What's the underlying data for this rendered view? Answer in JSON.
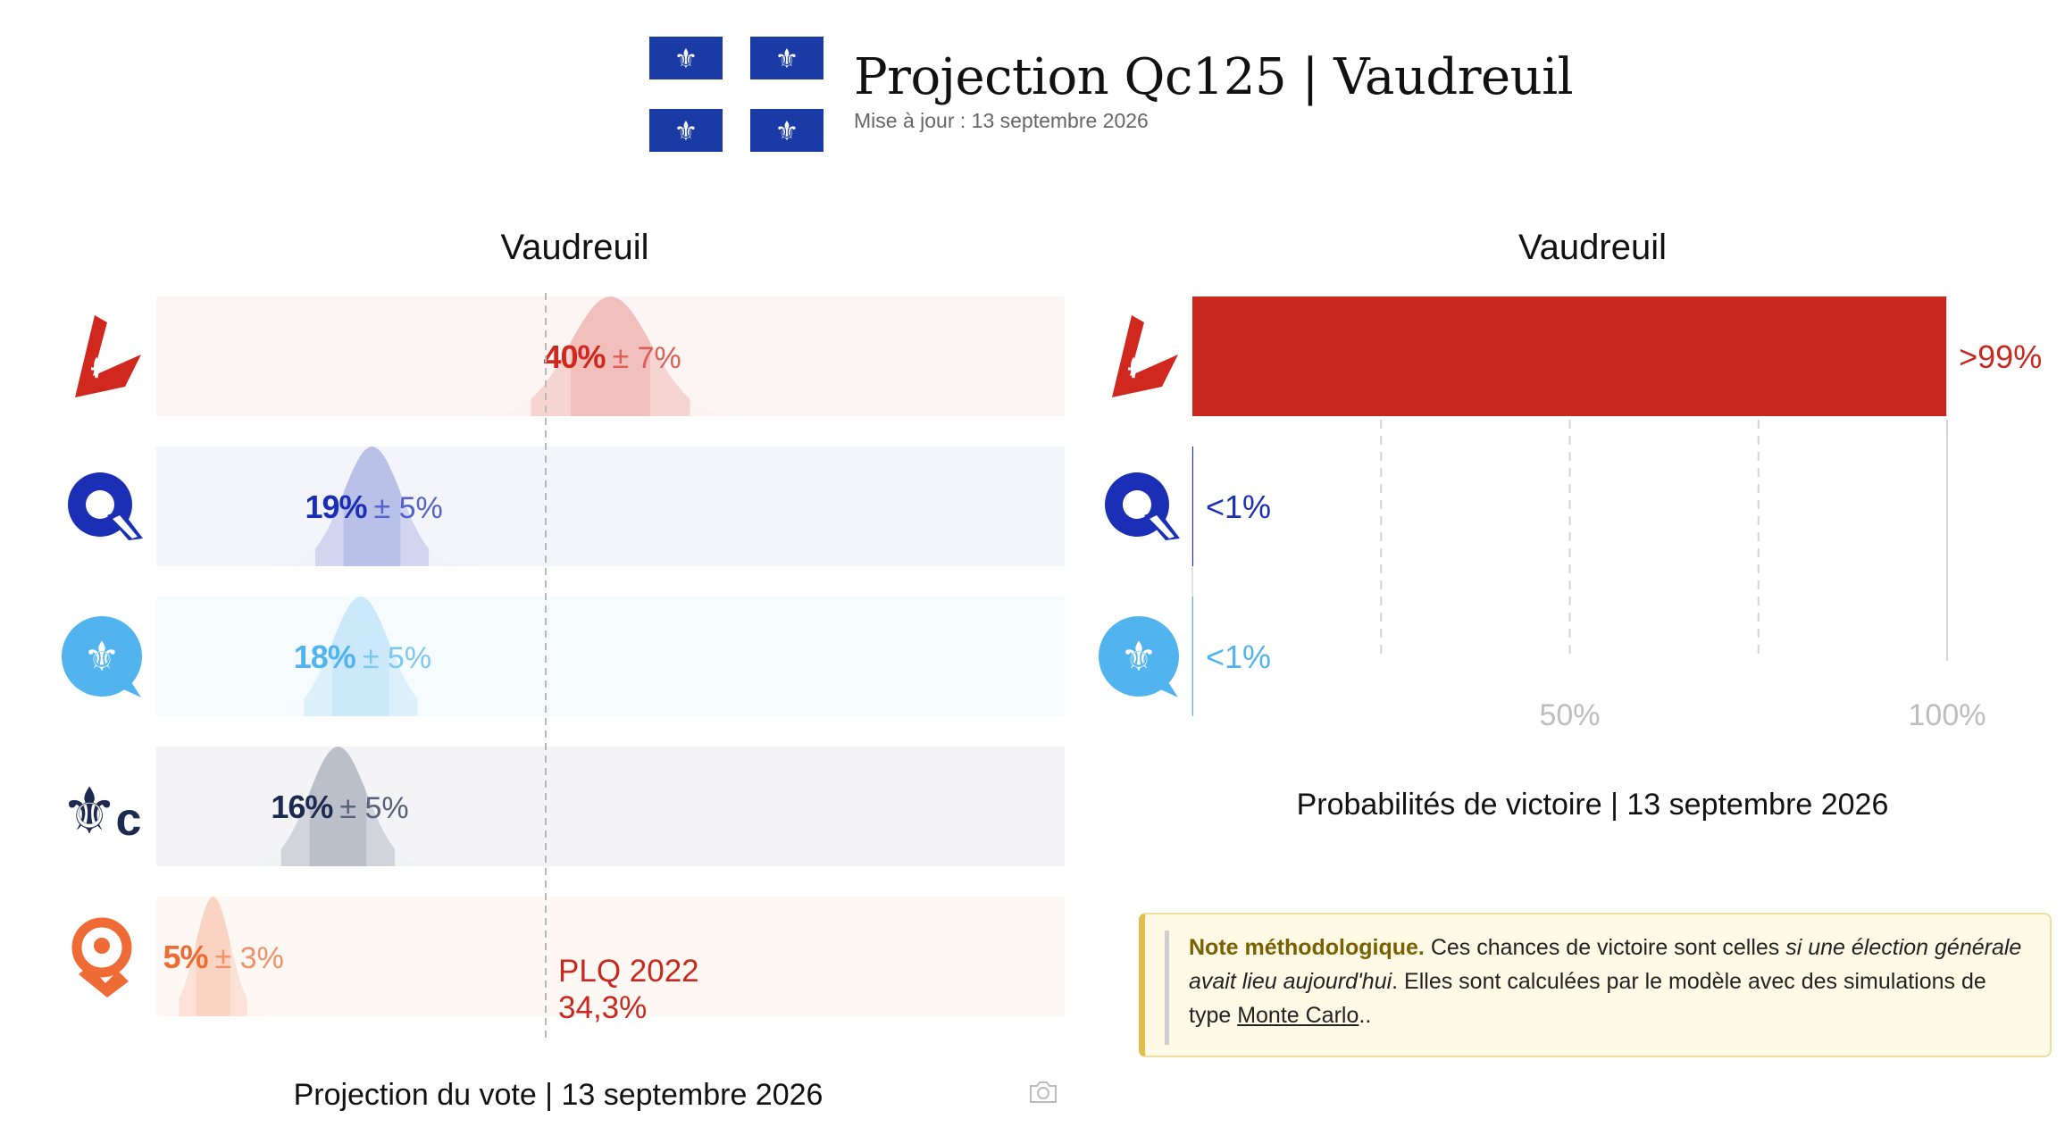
{
  "header": {
    "title": "Projection Qc125 | Vaudreuil",
    "updated": "Mise à jour : 13 septembre 2026"
  },
  "chart_data": [
    {
      "type": "bar",
      "title": "Vaudreuil",
      "caption": "Projection du vote | 13 septembre 2026",
      "categories": [
        "PLQ",
        "CAQ",
        "PQ",
        "PCQ",
        "QS"
      ],
      "series": [
        {
          "values": [
            40,
            19,
            18,
            16,
            5
          ],
          "error": [
            7,
            5,
            5,
            5,
            3
          ]
        }
      ],
      "xlim": [
        0,
        80
      ],
      "bar_labels": [
        {
          "value": "40%",
          "error": "± 7%"
        },
        {
          "value": "19%",
          "error": "± 5%"
        },
        {
          "value": "18%",
          "error": "± 5%"
        },
        {
          "value": "16%",
          "error": "± 5%"
        },
        {
          "value": "5%",
          "error": "± 3%"
        }
      ],
      "reference_line": {
        "value": 34.3,
        "label": "PLQ 2022",
        "value_label": "34,3%"
      },
      "colors": [
        "#d0281e",
        "#1a2fb5",
        "#52b4ee",
        "#1d2a4f",
        "#ee6b35"
      ]
    },
    {
      "type": "bar",
      "title": "Vaudreuil",
      "caption": "Probabilités de victoire | 13 septembre 2026",
      "categories": [
        "PLQ",
        "CAQ",
        "PQ"
      ],
      "values": [
        99.9,
        0.1,
        0.1
      ],
      "value_labels": [
        ">99%",
        "<1%",
        "<1%"
      ],
      "xlim": [
        0,
        100
      ],
      "xticks": [
        "50%",
        "100%"
      ],
      "grid": true,
      "colors": [
        "#c9281e",
        "#1a2fb5",
        "#52b4ee"
      ]
    }
  ],
  "note": {
    "title": "Note méthodologique.",
    "text1": " Ces chances de victoire sont celles ",
    "em": "si une élection générale avait lieu aujourd'hui",
    "text2": ". Elles sont calculées par le modèle avec des simulations de type ",
    "link": "Monte Carlo",
    "text3": ".."
  },
  "icons": {
    "flag": "quebec-flag",
    "parties": [
      "plq-logo-icon",
      "caq-logo-icon",
      "pq-logo-icon",
      "pcq-logo-icon",
      "qs-logo-icon"
    ],
    "camera": "camera-icon"
  }
}
